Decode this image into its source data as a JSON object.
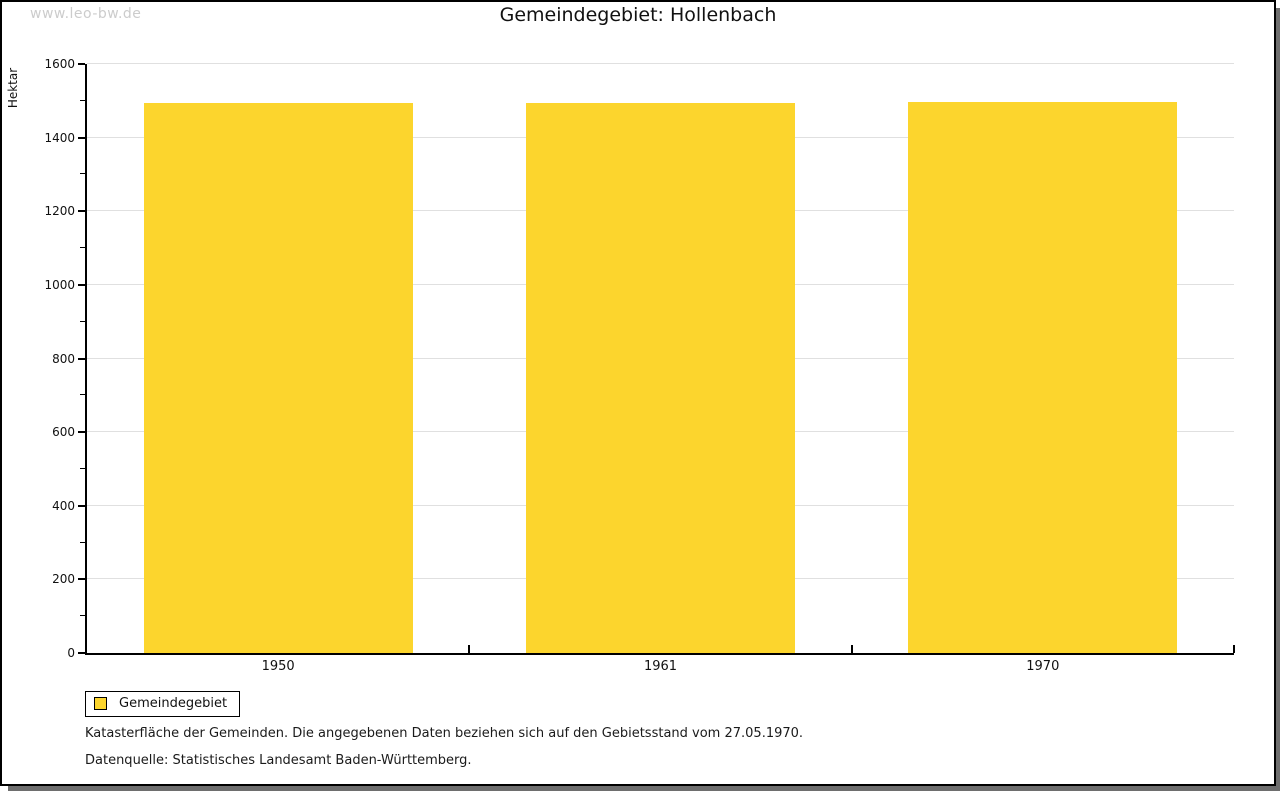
{
  "watermark": "www.leo-bw.de",
  "title": "Gemeindegebiet: Hollenbach",
  "chart_data": {
    "type": "bar",
    "categories": [
      "1950",
      "1961",
      "1970"
    ],
    "values": [
      1493,
      1493,
      1496
    ],
    "title": "Gemeindegebiet: Hollenbach",
    "xlabel": "",
    "ylabel": "Hektar",
    "ylim": [
      0,
      1600
    ],
    "ytick_step": 200,
    "yminor_step": 100,
    "grid": true,
    "legend_position": "bottom-left",
    "bar_color": "#fcd52d"
  },
  "legend": {
    "items": [
      {
        "label": "Gemeindegebiet",
        "color": "#fcd52d"
      }
    ]
  },
  "footnotes": {
    "line1": "Katasterfläche der Gemeinden. Die angegebenen Daten beziehen sich auf den Gebietsstand vom 27.05.1970.",
    "line2": "Datenquelle: Statistisches Landesamt Baden-Württemberg."
  },
  "colors": {
    "bar": "#fcd52d",
    "gridline": "#e0e0e0",
    "axis": "#000000",
    "shadow": "#6e6e6e",
    "watermark": "#cccccc"
  }
}
